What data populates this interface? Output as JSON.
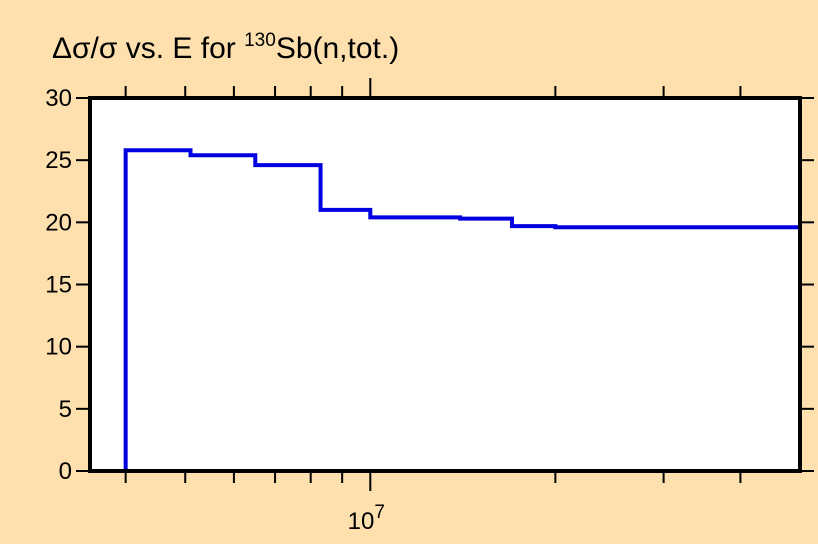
{
  "chart_data": {
    "type": "line",
    "step": true,
    "title": {
      "prefix": "Δσ/σ vs. E for ",
      "superscript": "130",
      "suffix": "Sb(n,tot.)"
    },
    "xlabel": "",
    "ylabel": "",
    "x_scale": "log",
    "xlim": [
      3500000,
      50000000
    ],
    "ylim": [
      0,
      30
    ],
    "x_major_ticks": [
      {
        "value": 10000000,
        "base": "10",
        "exponent": "7"
      }
    ],
    "x_minor_ticks": [
      4000000,
      5000000,
      6000000,
      7000000,
      8000000,
      9000000,
      20000000,
      30000000,
      40000000
    ],
    "y_ticks": [
      0,
      5,
      10,
      15,
      20,
      25,
      30
    ],
    "y_tick_labels": [
      "0",
      "5",
      "10",
      "15",
      "20",
      "25",
      "30"
    ],
    "grid": false,
    "legend": "none",
    "series": [
      {
        "color": "#0000e0",
        "x": [
          4000000,
          4000000,
          5100000,
          6500000,
          8300000,
          10000000,
          14000000,
          17000000,
          20000000,
          50000000,
          50000000
        ],
        "values": [
          0,
          25.8,
          25.4,
          24.6,
          21.0,
          20.4,
          20.3,
          19.7,
          19.6,
          19.5,
          0
        ]
      }
    ],
    "colors": {
      "background": "#fde0ad",
      "plot_area": "#ffffff",
      "axes": "#000000",
      "series": "#0000e0"
    }
  }
}
